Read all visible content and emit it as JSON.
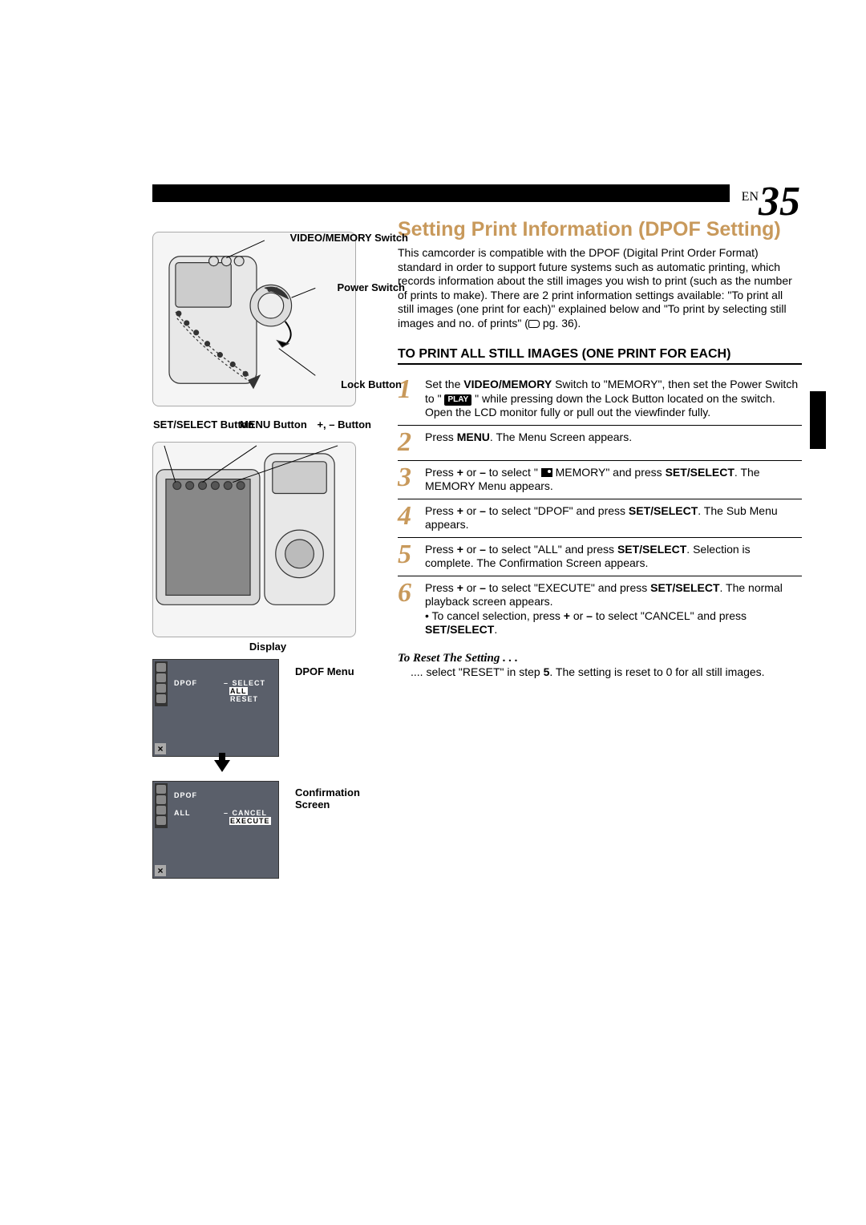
{
  "page": {
    "en_prefix": "EN",
    "number": "35"
  },
  "heading": "Setting Print Information (DPOF Setting)",
  "intro": "This camcorder is compatible with the DPOF (Digital Print Order Format) standard in order to support future systems such as automatic printing, which records information about the still images you wish to print (such as the number of prints to make). There are 2 print information settings available: \"To print all still images (one print for each)\" explained below and \"To print by selecting still images and no. of prints\" (",
  "intro_page_ref": " pg. 36).",
  "section_title": "TO PRINT ALL STILL IMAGES (ONE PRINT FOR EACH)",
  "labels": {
    "video_memory_switch": "VIDEO/MEMORY Switch",
    "power_switch": "Power Switch",
    "lock_button": "Lock Button",
    "menu_button": "MENU Button",
    "set_select_button": "SET/SELECT Button",
    "plus_minus_button": "+, – Button",
    "display": "Display",
    "dpof_menu": "DPOF Menu",
    "confirmation_screen": "Confirmation Screen"
  },
  "menu1": {
    "dpof": "DPOF",
    "dash": "–",
    "options": [
      "SELECT",
      "ALL",
      "RESET"
    ],
    "highlight": 1
  },
  "menu2": {
    "dpof": "DPOF",
    "all": "ALL",
    "dash": "–",
    "options": [
      "CANCEL",
      "EXECUTE"
    ],
    "highlight": 1
  },
  "steps": [
    {
      "n": "1",
      "segments": [
        {
          "t": "Set the "
        },
        {
          "t": "VIDEO/MEMORY",
          "b": true
        },
        {
          "t": " Switch to \"MEMORY\", then set the Power Switch to \" "
        },
        {
          "chip": "PLAY"
        },
        {
          "t": " \" while pressing down the Lock Button located on the switch. Open the LCD monitor fully or pull out the viewfinder fully."
        }
      ]
    },
    {
      "n": "2",
      "segments": [
        {
          "t": "Press "
        },
        {
          "t": "MENU",
          "b": true
        },
        {
          "t": ". The Menu Screen appears."
        }
      ]
    },
    {
      "n": "3",
      "segments": [
        {
          "t": "Press "
        },
        {
          "t": "+",
          "b": true
        },
        {
          "t": " or "
        },
        {
          "t": "–",
          "b": true
        },
        {
          "t": " to select \" "
        },
        {
          "memicon": true
        },
        {
          "t": " MEMORY\" and press "
        },
        {
          "t": "SET/SELECT",
          "b": true
        },
        {
          "t": ". The MEMORY Menu appears."
        }
      ]
    },
    {
      "n": "4",
      "segments": [
        {
          "t": "Press "
        },
        {
          "t": "+",
          "b": true
        },
        {
          "t": " or "
        },
        {
          "t": "–",
          "b": true
        },
        {
          "t": " to select \"DPOF\" and press "
        },
        {
          "t": "SET/SELECT",
          "b": true
        },
        {
          "t": ". The Sub Menu appears."
        }
      ]
    },
    {
      "n": "5",
      "segments": [
        {
          "t": "Press "
        },
        {
          "t": "+",
          "b": true
        },
        {
          "t": " or "
        },
        {
          "t": "–",
          "b": true
        },
        {
          "t": " to select \"ALL\" and press "
        },
        {
          "t": "SET/SELECT",
          "b": true
        },
        {
          "t": ". Selection is complete. The Confirmation Screen appears."
        }
      ]
    },
    {
      "n": "6",
      "segments": [
        {
          "t": "Press "
        },
        {
          "t": "+",
          "b": true
        },
        {
          "t": " or "
        },
        {
          "t": "–",
          "b": true
        },
        {
          "t": " to select \"EXECUTE\" and press "
        },
        {
          "t": "SET/SELECT",
          "b": true
        },
        {
          "t": ". The normal playback screen appears."
        }
      ],
      "bullet": [
        {
          "t": "To cancel selection, press "
        },
        {
          "t": "+",
          "b": true
        },
        {
          "t": " or "
        },
        {
          "t": "–",
          "b": true
        },
        {
          "t": " to select \"CANCEL\" and press "
        },
        {
          "t": "SET/SELECT",
          "b": true
        },
        {
          "t": "."
        }
      ]
    }
  ],
  "reset": {
    "heading": "To Reset The Setting . . .",
    "dots": "....",
    "text": " select \"RESET\" in step ",
    "step": "5",
    "text2": ". The setting is reset to 0 for all still images."
  },
  "colors": {
    "accent": "#c8995b",
    "screen_bg": "#5a5f6a",
    "text": "#000000",
    "bg": "#ffffff"
  }
}
